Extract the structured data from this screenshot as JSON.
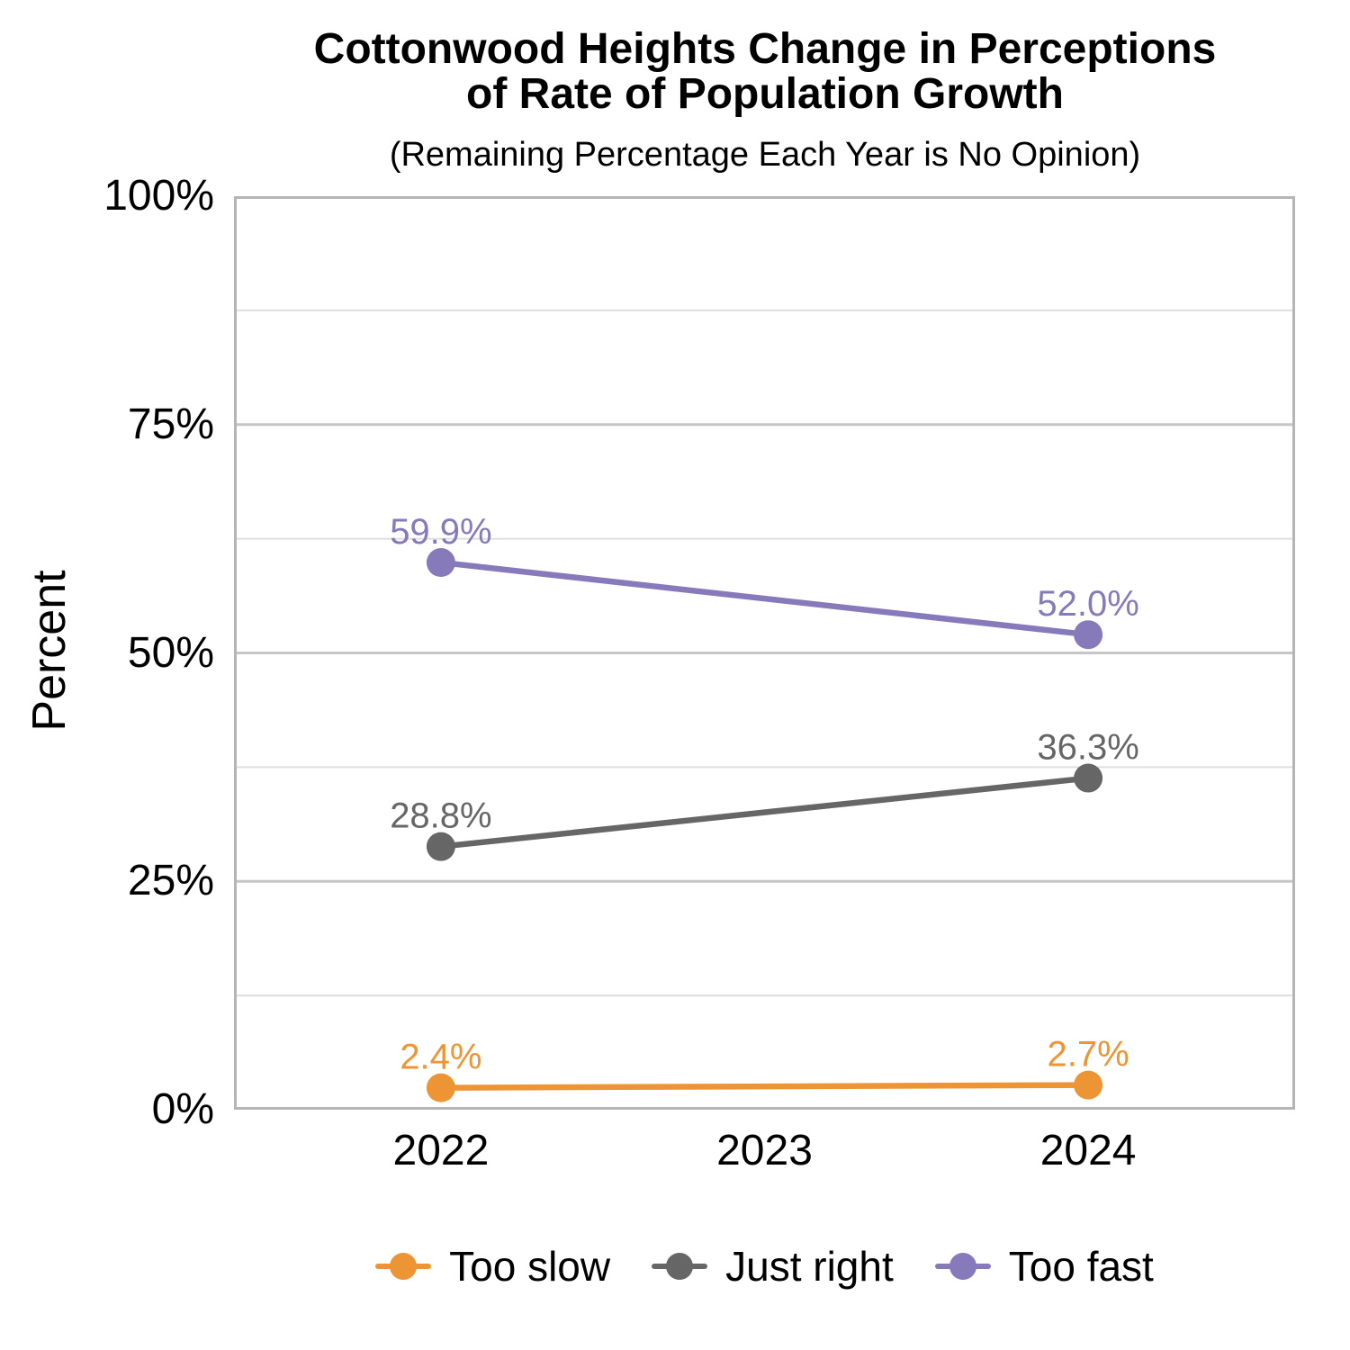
{
  "header": {
    "title_lines": [
      "Cottonwood Heights Change in Perceptions",
      "of Rate of Population Growth"
    ],
    "subtitle": "(Remaining Percentage Each Year is No Opinion)"
  },
  "colors": {
    "background": "#FFFFFF",
    "text": "#000000",
    "panel_border": "#B5B5B5",
    "grid_major": "#C6C6C6",
    "grid_minor": "#DFDFDF",
    "too_slow": "#ED9434",
    "just_right": "#666666",
    "too_fast": "#867ABB"
  },
  "chart_data": {
    "type": "line",
    "title": "Cottonwood Heights Change in Perceptions of Rate of Population Growth",
    "subtitle": "(Remaining Percentage Each Year is No Opinion)",
    "xlabel": "",
    "ylabel": "Percent",
    "ylim": [
      0,
      100
    ],
    "grid": {
      "major": [
        25,
        50,
        75
      ],
      "minor": [
        12.5,
        37.5,
        62.5,
        87.5
      ],
      "vertical": false
    },
    "legend_position": "bottom",
    "x_ticks": [
      {
        "value": 2022,
        "label": "2022"
      },
      {
        "value": 2023,
        "label": "2023"
      },
      {
        "value": 2024,
        "label": "2024"
      }
    ],
    "y_ticks": [
      {
        "value": 0,
        "label": "0%"
      },
      {
        "value": 25,
        "label": "25%"
      },
      {
        "value": 50,
        "label": "50%"
      },
      {
        "value": 75,
        "label": "75%"
      },
      {
        "value": 100,
        "label": "100%"
      }
    ],
    "series": [
      {
        "name": "Too slow",
        "color": "#ED9434",
        "points": [
          {
            "x": 2022,
            "y": 2.4,
            "label": "2.4%"
          },
          {
            "x": 2024,
            "y": 2.7,
            "label": "2.7%"
          }
        ]
      },
      {
        "name": "Just right",
        "color": "#666666",
        "points": [
          {
            "x": 2022,
            "y": 28.8,
            "label": "28.8%"
          },
          {
            "x": 2024,
            "y": 36.3,
            "label": "36.3%"
          }
        ]
      },
      {
        "name": "Too fast",
        "color": "#867ABB",
        "points": [
          {
            "x": 2022,
            "y": 59.9,
            "label": "59.9%"
          },
          {
            "x": 2024,
            "y": 52.0,
            "label": "52.0%"
          }
        ]
      }
    ]
  }
}
